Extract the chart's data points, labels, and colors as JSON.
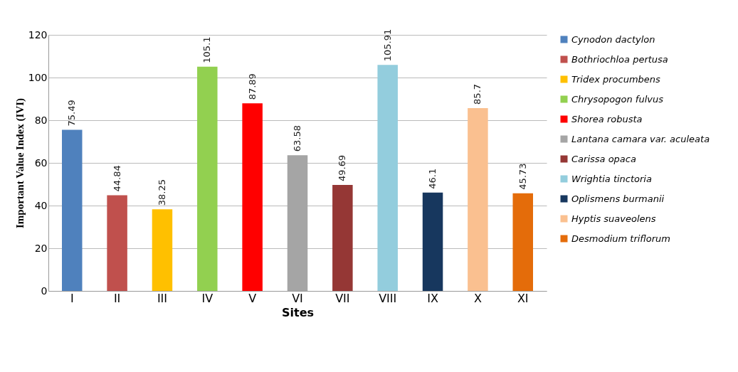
{
  "chart_data": {
    "type": "bar",
    "xlabel": "Sites",
    "ylabel": "Important Value Index (IVI)",
    "categories": [
      "I",
      "II",
      "III",
      "IV",
      "V",
      "VI",
      "VII",
      "VIII",
      "IX",
      "X",
      "XI"
    ],
    "series": [
      {
        "name": "Cynodon dactylon",
        "color": "#4f81bd",
        "values": [
          75.49,
          null,
          null,
          null,
          null,
          null,
          null,
          null,
          null,
          null,
          null
        ]
      },
      {
        "name": "Bothriochloa pertusa",
        "color": "#c0504d",
        "values": [
          null,
          44.84,
          null,
          null,
          null,
          null,
          null,
          null,
          null,
          null,
          null
        ]
      },
      {
        "name": "Tridex procumbens",
        "color": "#ffc000",
        "values": [
          null,
          null,
          38.25,
          null,
          null,
          null,
          null,
          null,
          null,
          null,
          null
        ]
      },
      {
        "name": "Chrysopogon fulvus",
        "color": "#92d050",
        "values": [
          null,
          null,
          null,
          105.1,
          null,
          null,
          null,
          null,
          null,
          null,
          null
        ]
      },
      {
        "name": "Shorea robusta",
        "color": "#ff0000",
        "values": [
          null,
          null,
          null,
          null,
          87.89,
          null,
          null,
          null,
          null,
          null,
          null
        ]
      },
      {
        "name": "Lantana camara var. aculeata",
        "color": "#a5a5a5",
        "values": [
          null,
          null,
          null,
          null,
          null,
          63.58,
          null,
          null,
          null,
          null,
          null
        ]
      },
      {
        "name": "Carissa opaca",
        "color": "#953735",
        "values": [
          null,
          null,
          null,
          null,
          null,
          null,
          49.69,
          null,
          null,
          null,
          null
        ]
      },
      {
        "name": "Wrightia tinctoria",
        "color": "#93cddd",
        "values": [
          null,
          null,
          null,
          null,
          null,
          null,
          null,
          105.91,
          null,
          null,
          null
        ]
      },
      {
        "name": "Oplismens burmanii",
        "color": "#17375e",
        "values": [
          null,
          null,
          null,
          null,
          null,
          null,
          null,
          null,
          46.1,
          null,
          null
        ]
      },
      {
        "name": "Hyptis suaveolens",
        "color": "#fac090",
        "values": [
          null,
          null,
          null,
          null,
          null,
          null,
          null,
          null,
          null,
          85.7,
          null
        ]
      },
      {
        "name": "Desmodium triflorum",
        "color": "#e46c0a",
        "values": [
          null,
          null,
          null,
          null,
          null,
          null,
          null,
          null,
          null,
          null,
          45.73
        ]
      }
    ],
    "ylim": [
      0,
      120
    ],
    "yticks": [
      0,
      20,
      40,
      60,
      80,
      100,
      120
    ],
    "grid": "y",
    "legend": "right",
    "data_labels": true
  }
}
